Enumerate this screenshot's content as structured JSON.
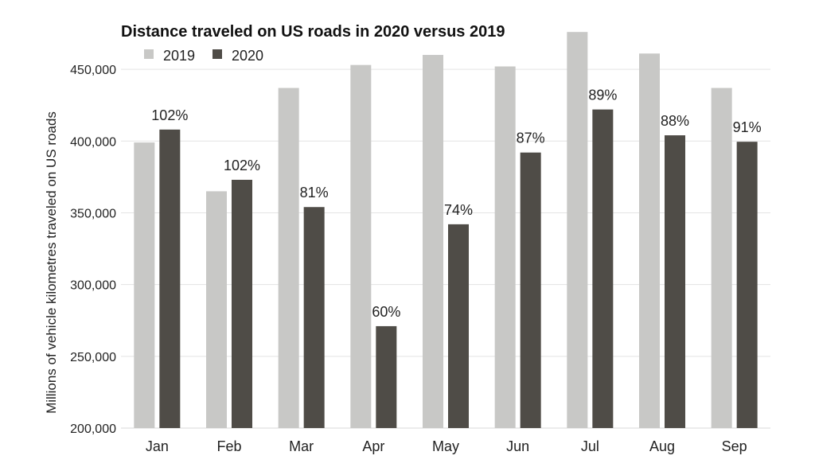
{
  "chart_data": {
    "type": "bar",
    "title": "Distance traveled on US roads in 2020 versus 2019",
    "ylabel": "Millions of vehicle kilometres traveled on US roads",
    "xlabel": "",
    "categories": [
      "Jan",
      "Feb",
      "Mar",
      "Apr",
      "May",
      "Jun",
      "Jul",
      "Aug",
      "Sep"
    ],
    "series": [
      {
        "name": "2019",
        "color": "#c8c8c6",
        "values": [
          399000,
          365000,
          437000,
          453000,
          460000,
          452000,
          476000,
          461000,
          437000
        ]
      },
      {
        "name": "2020",
        "color": "#4f4c47",
        "values": [
          408000,
          373000,
          354000,
          271000,
          342000,
          392000,
          422000,
          404000,
          399500
        ]
      }
    ],
    "data_labels": [
      "102%",
      "102%",
      "81%",
      "60%",
      "74%",
      "87%",
      "89%",
      "88%",
      "91%"
    ],
    "ylim": [
      200000,
      475000
    ],
    "yticks": [
      200000,
      250000,
      300000,
      350000,
      400000,
      450000
    ],
    "ytick_labels": [
      "200,000",
      "250,000",
      "300,000",
      "350,000",
      "400,000",
      "450,000"
    ],
    "grid": true,
    "legend_position": "top-left"
  }
}
